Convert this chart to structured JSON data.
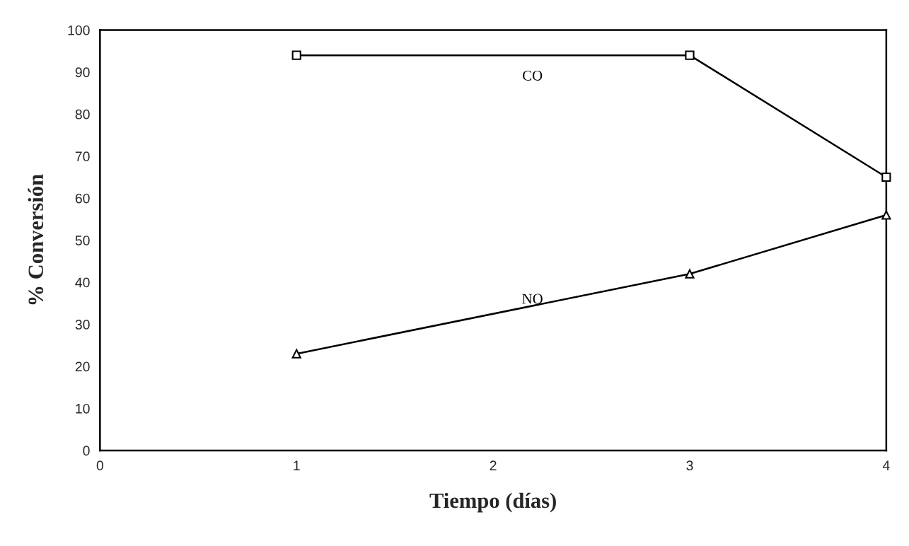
{
  "chart_data": {
    "type": "line",
    "xlabel": "Tiempo (días)",
    "ylabel": "% Conversión",
    "x": [
      1,
      3,
      4
    ],
    "series": [
      {
        "name": "CO",
        "color": "#000000",
        "marker": "square",
        "values": [
          94,
          94,
          65
        ]
      },
      {
        "name": "NO",
        "color": "#000000",
        "marker": "triangle",
        "values": [
          23,
          42,
          56
        ]
      }
    ],
    "xlim": [
      0,
      4
    ],
    "xticks": [
      0,
      1,
      2,
      3,
      4
    ],
    "ylim": [
      0,
      100
    ],
    "yticks": [
      0,
      10,
      20,
      30,
      40,
      50,
      60,
      70,
      80,
      90,
      100
    ],
    "grid": false,
    "legend": false,
    "line_style": "solid"
  }
}
